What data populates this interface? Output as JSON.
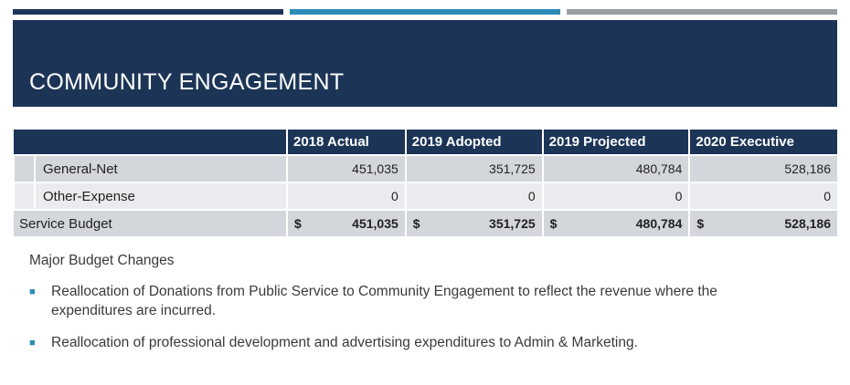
{
  "slide": {
    "title": "COMMUNITY ENGAGEMENT",
    "colors": {
      "navy": "#1c3557",
      "teal": "#2e8bb8",
      "gray": "#9a9ea3"
    }
  },
  "table": {
    "headers": [
      "",
      "2018 Actual",
      "2019 Adopted",
      "2019 Projected",
      "2020 Executive"
    ],
    "rows": [
      {
        "label": "General-Net",
        "values": [
          "451,035",
          "351,725",
          "480,784",
          "528,186"
        ]
      },
      {
        "label": "Other-Expense",
        "values": [
          "0",
          "0",
          "0",
          "0"
        ]
      }
    ],
    "total": {
      "label": "Service Budget",
      "currency": "$",
      "values": [
        "451,035",
        "351,725",
        "480,784",
        "528,186"
      ]
    }
  },
  "notes": {
    "title": "Major Budget Changes",
    "bullet_icon": "square-bullet-icon",
    "bullets": [
      "Reallocation of Donations from Public Service to Community Engagement to reflect the revenue where the expenditures are incurred.",
      "Reallocation of professional development and advertising expenditures to Admin & Marketing."
    ]
  }
}
